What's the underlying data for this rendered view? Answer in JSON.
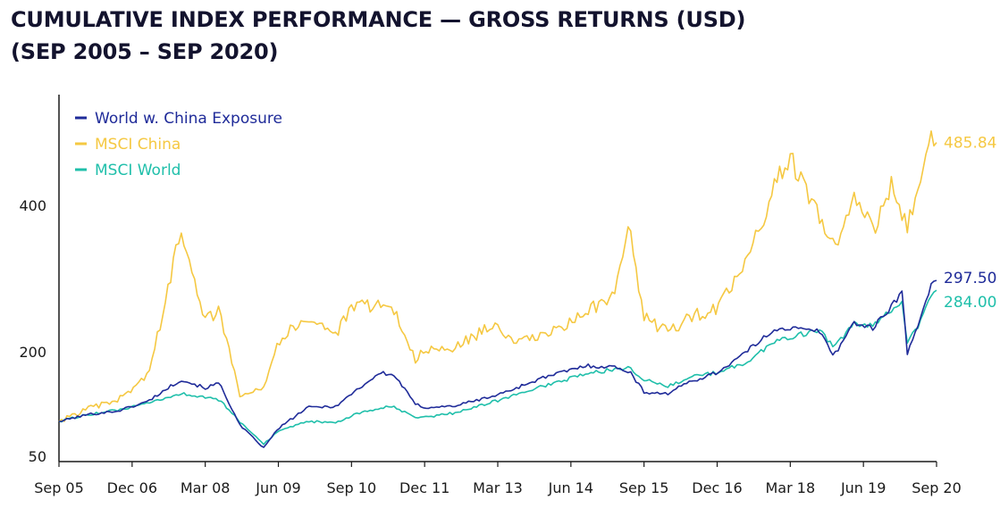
{
  "title_line1": "CUMULATIVE INDEX PERFORMANCE — GROSS RETURNS   (USD)",
  "title_line2": "(SEP 2005 – SEP 2020)",
  "chart_data": {
    "type": "line",
    "title": "CUMULATIVE INDEX PERFORMANCE — GROSS RETURNS (USD) (SEP 2005 – SEP 2020)",
    "x_start": "2005-09",
    "x_end": "2020-09",
    "x_tick_labels": [
      "Sep 05",
      "Dec 06",
      "Mar 08",
      "Jun 09",
      "Sep 10",
      "Dec 11",
      "Mar 13",
      "Jun 14",
      "Sep 15",
      "Dec 16",
      "Mar 18",
      "Jun 19",
      "Sep 20"
    ],
    "y_tick_labels": [
      "50",
      "200",
      "400"
    ],
    "y_ticks": [
      50,
      200,
      400
    ],
    "ylim": [
      50,
      535
    ],
    "legend_position": "top-left",
    "series": [
      {
        "name": "World w. China Exposure",
        "color": "#1f2b99",
        "end_label": "297.50",
        "points": [
          [
            "2005-09",
            100
          ],
          [
            "2006-03",
            110
          ],
          [
            "2006-09",
            115
          ],
          [
            "2007-03",
            128
          ],
          [
            "2007-10",
            160
          ],
          [
            "2008-03",
            148
          ],
          [
            "2008-06",
            155
          ],
          [
            "2008-10",
            95
          ],
          [
            "2009-03",
            62
          ],
          [
            "2009-06",
            90
          ],
          [
            "2009-12",
            120
          ],
          [
            "2010-06",
            122
          ],
          [
            "2010-09",
            140
          ],
          [
            "2011-03",
            170
          ],
          [
            "2011-06",
            165
          ],
          [
            "2011-10",
            125
          ],
          [
            "2011-12",
            120
          ],
          [
            "2012-06",
            122
          ],
          [
            "2013-03",
            138
          ],
          [
            "2013-12",
            162
          ],
          [
            "2014-09",
            180
          ],
          [
            "2015-03",
            178
          ],
          [
            "2015-06",
            172
          ],
          [
            "2015-09",
            142
          ],
          [
            "2016-02",
            140
          ],
          [
            "2016-06",
            156
          ],
          [
            "2016-12",
            170
          ],
          [
            "2017-06",
            200
          ],
          [
            "2017-12",
            232
          ],
          [
            "2018-03",
            232
          ],
          [
            "2018-09",
            228
          ],
          [
            "2018-12",
            195
          ],
          [
            "2019-04",
            240
          ],
          [
            "2019-08",
            232
          ],
          [
            "2019-12",
            265
          ],
          [
            "2020-02",
            282
          ],
          [
            "2020-03",
            195
          ],
          [
            "2020-06",
            255
          ],
          [
            "2020-08",
            292
          ],
          [
            "2020-09",
            297.5
          ]
        ]
      },
      {
        "name": "MSCI China",
        "color": "#f5c842",
        "end_label": "485.84",
        "points": [
          [
            "2005-09",
            100
          ],
          [
            "2006-03",
            118
          ],
          [
            "2006-09",
            130
          ],
          [
            "2007-03",
            165
          ],
          [
            "2007-06",
            240
          ],
          [
            "2007-10",
            372
          ],
          [
            "2008-03",
            245
          ],
          [
            "2008-06",
            255
          ],
          [
            "2008-10",
            140
          ],
          [
            "2009-03",
            150
          ],
          [
            "2009-06",
            215
          ],
          [
            "2009-12",
            248
          ],
          [
            "2010-06",
            225
          ],
          [
            "2010-09",
            260
          ],
          [
            "2011-03",
            265
          ],
          [
            "2011-06",
            255
          ],
          [
            "2011-10",
            190
          ],
          [
            "2011-12",
            200
          ],
          [
            "2012-06",
            205
          ],
          [
            "2013-03",
            240
          ],
          [
            "2013-06",
            210
          ],
          [
            "2014-03",
            228
          ],
          [
            "2014-09",
            255
          ],
          [
            "2015-03",
            275
          ],
          [
            "2015-06",
            370
          ],
          [
            "2015-09",
            248
          ],
          [
            "2016-02",
            225
          ],
          [
            "2016-06",
            248
          ],
          [
            "2016-12",
            258
          ],
          [
            "2017-06",
            320
          ],
          [
            "2017-12",
            432
          ],
          [
            "2018-03",
            465
          ],
          [
            "2018-09",
            380
          ],
          [
            "2018-12",
            345
          ],
          [
            "2019-04",
            410
          ],
          [
            "2019-08",
            365
          ],
          [
            "2019-12",
            430
          ],
          [
            "2020-03",
            370
          ],
          [
            "2020-06",
            440
          ],
          [
            "2020-08",
            500
          ],
          [
            "2020-09",
            485.84
          ]
        ]
      },
      {
        "name": "MSCI World",
        "color": "#1fbfaa",
        "end_label": "284.00",
        "points": [
          [
            "2005-09",
            100
          ],
          [
            "2006-03",
            110
          ],
          [
            "2006-09",
            116
          ],
          [
            "2007-03",
            125
          ],
          [
            "2007-10",
            140
          ],
          [
            "2008-03",
            135
          ],
          [
            "2008-06",
            130
          ],
          [
            "2008-10",
            100
          ],
          [
            "2009-03",
            68
          ],
          [
            "2009-06",
            85
          ],
          [
            "2009-12",
            100
          ],
          [
            "2010-06",
            98
          ],
          [
            "2010-09",
            108
          ],
          [
            "2011-03",
            120
          ],
          [
            "2011-06",
            120
          ],
          [
            "2011-10",
            105
          ],
          [
            "2011-12",
            106
          ],
          [
            "2012-06",
            112
          ],
          [
            "2013-03",
            130
          ],
          [
            "2013-12",
            150
          ],
          [
            "2014-09",
            168
          ],
          [
            "2015-03",
            175
          ],
          [
            "2015-06",
            178
          ],
          [
            "2015-09",
            160
          ],
          [
            "2016-02",
            150
          ],
          [
            "2016-06",
            163
          ],
          [
            "2016-12",
            170
          ],
          [
            "2017-06",
            185
          ],
          [
            "2017-12",
            215
          ],
          [
            "2018-03",
            220
          ],
          [
            "2018-09",
            230
          ],
          [
            "2018-12",
            205
          ],
          [
            "2019-04",
            238
          ],
          [
            "2019-08",
            235
          ],
          [
            "2019-12",
            258
          ],
          [
            "2020-02",
            270
          ],
          [
            "2020-03",
            210
          ],
          [
            "2020-06",
            245
          ],
          [
            "2020-08",
            278
          ],
          [
            "2020-09",
            284
          ]
        ]
      }
    ]
  }
}
